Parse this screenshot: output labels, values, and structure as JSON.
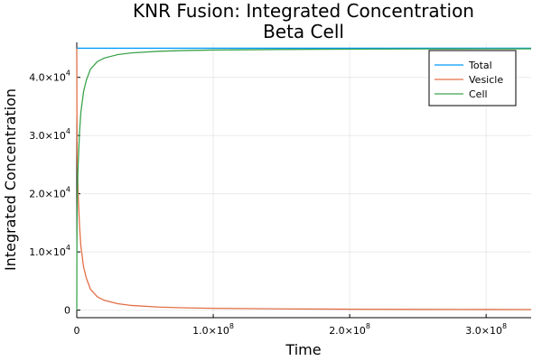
{
  "chart_data": {
    "type": "line",
    "title": [
      "KNR Fusion: Integrated Concentration",
      "Beta Cell"
    ],
    "xlabel": "Time",
    "ylabel": "Integrated Concentration",
    "xlim": [
      0,
      333000000
    ],
    "ylim": [
      -1300,
      46000
    ],
    "grid": true,
    "legend_position": "top-right",
    "x_ticks": [
      {
        "value": 0,
        "mantissa": "0",
        "exponent": ""
      },
      {
        "value": 100000000,
        "mantissa": "1.0×10",
        "exponent": "8"
      },
      {
        "value": 200000000,
        "mantissa": "2.0×10",
        "exponent": "8"
      },
      {
        "value": 300000000,
        "mantissa": "3.0×10",
        "exponent": "8"
      }
    ],
    "y_ticks": [
      {
        "value": 0,
        "mantissa": "0",
        "exponent": ""
      },
      {
        "value": 10000,
        "mantissa": "1.0×10",
        "exponent": "4"
      },
      {
        "value": 20000,
        "mantissa": "2.0×10",
        "exponent": "4"
      },
      {
        "value": 30000,
        "mantissa": "3.0×10",
        "exponent": "4"
      },
      {
        "value": 40000,
        "mantissa": "4.0×10",
        "exponent": "4"
      }
    ],
    "series": [
      {
        "name": "Total",
        "color": "#009AFA",
        "x": [
          0,
          333000000
        ],
        "y": [
          45000,
          45000
        ]
      },
      {
        "name": "Vesicle",
        "color": "#E26F46",
        "x": [
          0,
          100000,
          300000,
          600000,
          1000000,
          2000000,
          3000000,
          5000000,
          7000000,
          10000000,
          15000000,
          20000000,
          30000000,
          40000000,
          60000000,
          80000000,
          100000000,
          150000000,
          200000000,
          250000000,
          300000000,
          333000000
        ],
        "y": [
          45000,
          34000,
          27000,
          23000,
          20000,
          14500,
          11000,
          7400,
          5500,
          3600,
          2300,
          1700,
          1100,
          800,
          520,
          390,
          310,
          210,
          160,
          125,
          105,
          95
        ]
      },
      {
        "name": "Cell",
        "color": "#3DA44D",
        "x": [
          0,
          100000,
          300000,
          600000,
          1000000,
          2000000,
          3000000,
          5000000,
          7000000,
          10000000,
          15000000,
          20000000,
          30000000,
          40000000,
          60000000,
          80000000,
          100000000,
          150000000,
          200000000,
          250000000,
          300000000,
          333000000
        ],
        "y": [
          0,
          11000,
          18000,
          22000,
          25000,
          30500,
          34000,
          37600,
          39500,
          41400,
          42700,
          43300,
          43900,
          44200,
          44480,
          44610,
          44690,
          44790,
          44840,
          44875,
          44895,
          44905
        ]
      }
    ]
  }
}
